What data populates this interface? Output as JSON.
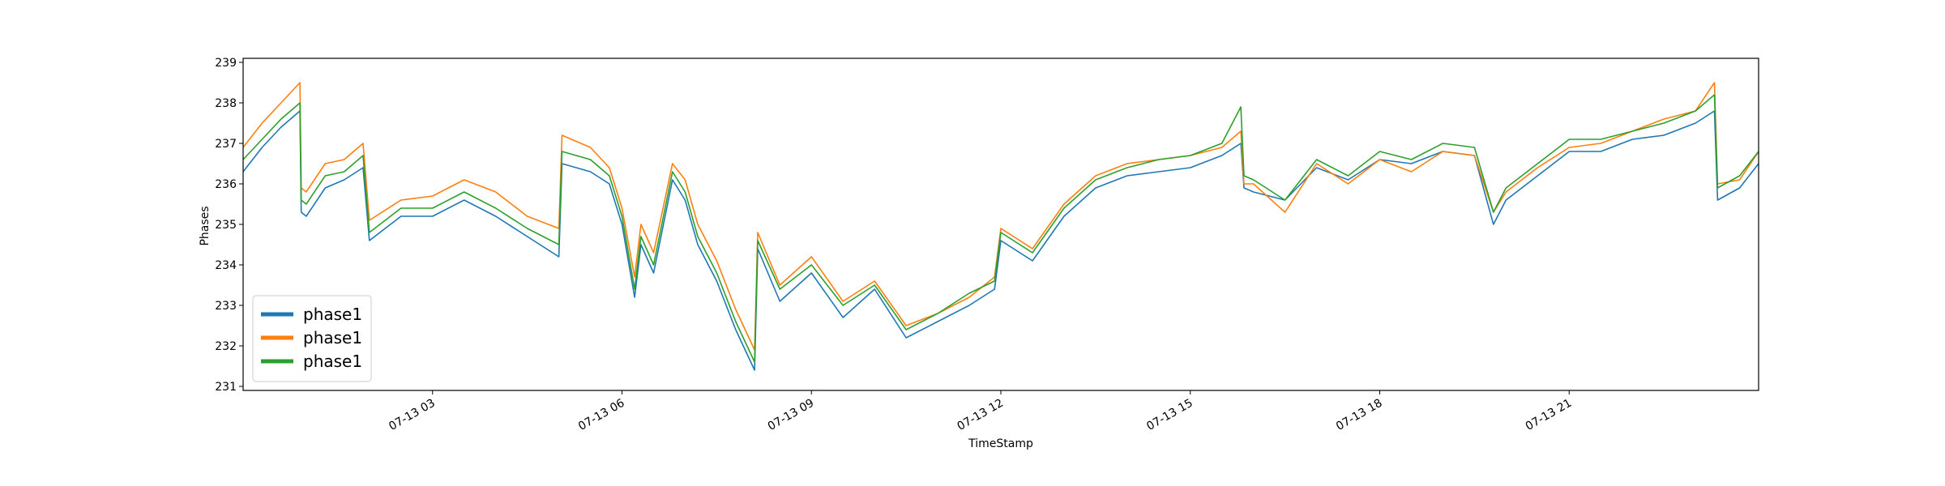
{
  "chart_data": {
    "type": "line",
    "title": "",
    "xlabel": "TimeStamp",
    "ylabel": "Phases",
    "xlim_hours": [
      0,
      24
    ],
    "ylim": [
      230.9,
      239.1
    ],
    "y_ticks": [
      231,
      232,
      233,
      234,
      235,
      236,
      237,
      238,
      239
    ],
    "x_ticks": [
      {
        "hour": 3,
        "label": "07-13 03"
      },
      {
        "hour": 6,
        "label": "07-13 06"
      },
      {
        "hour": 9,
        "label": "07-13 09"
      },
      {
        "hour": 12,
        "label": "07-13 12"
      },
      {
        "hour": 15,
        "label": "07-13 15"
      },
      {
        "hour": 18,
        "label": "07-13 18"
      },
      {
        "hour": 21,
        "label": "07-13 21"
      }
    ],
    "grid": false,
    "legend_position": "lower-left",
    "series": [
      {
        "name": "phase1",
        "color": "#1f77b4",
        "x": [
          0,
          0.3,
          0.6,
          0.9,
          0.92,
          1.0,
          1.3,
          1.6,
          1.9,
          2.0,
          2.5,
          3.0,
          3.5,
          4.0,
          4.5,
          5.0,
          5.05,
          5.5,
          5.8,
          6.0,
          6.2,
          6.3,
          6.5,
          6.8,
          7.0,
          7.2,
          7.5,
          7.8,
          8.1,
          8.15,
          8.5,
          9.0,
          9.5,
          10.0,
          10.5,
          11.0,
          11.5,
          11.9,
          12.0,
          12.5,
          13.0,
          13.5,
          14.0,
          14.5,
          15.0,
          15.5,
          15.8,
          15.85,
          16.0,
          16.5,
          17.0,
          17.5,
          18.0,
          18.5,
          19.0,
          19.5,
          19.8,
          20.0,
          20.5,
          21.0,
          21.5,
          22.0,
          22.5,
          23.0,
          23.3,
          23.35,
          23.7,
          24.0
        ],
        "values": [
          236.3,
          236.9,
          237.4,
          237.8,
          235.3,
          235.2,
          235.9,
          236.1,
          236.4,
          234.6,
          235.2,
          235.2,
          235.6,
          235.2,
          234.7,
          234.2,
          236.5,
          236.3,
          236.0,
          235.0,
          233.2,
          234.5,
          233.8,
          236.1,
          235.6,
          234.5,
          233.6,
          232.4,
          231.4,
          234.4,
          233.1,
          233.8,
          232.7,
          233.4,
          232.2,
          232.6,
          233.0,
          233.4,
          234.6,
          234.1,
          235.2,
          235.9,
          236.2,
          236.3,
          236.4,
          236.7,
          237.0,
          235.9,
          235.8,
          235.6,
          236.4,
          236.1,
          236.6,
          236.5,
          236.8,
          236.7,
          235.0,
          235.6,
          236.2,
          236.8,
          236.8,
          237.1,
          237.2,
          237.5,
          237.8,
          235.6,
          235.9,
          236.5
        ]
      },
      {
        "name": "phase1",
        "color": "#ff7f0e",
        "x": [
          0,
          0.3,
          0.6,
          0.9,
          0.92,
          1.0,
          1.3,
          1.6,
          1.9,
          2.0,
          2.5,
          3.0,
          3.5,
          4.0,
          4.5,
          5.0,
          5.05,
          5.5,
          5.8,
          6.0,
          6.2,
          6.3,
          6.5,
          6.8,
          7.0,
          7.2,
          7.5,
          7.8,
          8.1,
          8.15,
          8.5,
          9.0,
          9.5,
          10.0,
          10.5,
          11.0,
          11.5,
          11.9,
          12.0,
          12.5,
          13.0,
          13.5,
          14.0,
          14.5,
          15.0,
          15.5,
          15.8,
          15.85,
          16.0,
          16.5,
          17.0,
          17.5,
          18.0,
          18.5,
          19.0,
          19.5,
          19.8,
          20.0,
          20.5,
          21.0,
          21.5,
          22.0,
          22.5,
          23.0,
          23.3,
          23.35,
          23.7,
          24.0
        ],
        "values": [
          236.9,
          237.5,
          238.0,
          238.5,
          235.9,
          235.8,
          236.5,
          236.6,
          237.0,
          235.1,
          235.6,
          235.7,
          236.1,
          235.8,
          235.2,
          234.9,
          237.2,
          236.9,
          236.4,
          235.4,
          233.7,
          235.0,
          234.3,
          236.5,
          236.1,
          235.0,
          234.1,
          232.9,
          231.9,
          234.8,
          233.5,
          234.2,
          233.1,
          233.6,
          232.5,
          232.8,
          233.2,
          233.7,
          234.9,
          234.4,
          235.5,
          236.2,
          236.5,
          236.6,
          236.7,
          236.9,
          237.3,
          236.0,
          236.0,
          235.3,
          236.5,
          236.0,
          236.6,
          236.3,
          236.8,
          236.7,
          235.3,
          235.8,
          236.4,
          236.9,
          237.0,
          237.3,
          237.6,
          237.8,
          238.5,
          236.0,
          236.1,
          236.8
        ]
      },
      {
        "name": "phase1",
        "color": "#2ca02c",
        "x": [
          0,
          0.3,
          0.6,
          0.9,
          0.92,
          1.0,
          1.3,
          1.6,
          1.9,
          2.0,
          2.5,
          3.0,
          3.5,
          4.0,
          4.5,
          5.0,
          5.05,
          5.5,
          5.8,
          6.0,
          6.2,
          6.3,
          6.5,
          6.8,
          7.0,
          7.2,
          7.5,
          7.8,
          8.1,
          8.15,
          8.5,
          9.0,
          9.5,
          10.0,
          10.5,
          11.0,
          11.5,
          11.9,
          12.0,
          12.5,
          13.0,
          13.5,
          14.0,
          14.5,
          15.0,
          15.5,
          15.8,
          15.85,
          16.0,
          16.5,
          17.0,
          17.5,
          18.0,
          18.5,
          19.0,
          19.5,
          19.8,
          20.0,
          20.5,
          21.0,
          21.5,
          22.0,
          22.5,
          23.0,
          23.3,
          23.35,
          23.7,
          24.0
        ],
        "values": [
          236.6,
          237.1,
          237.6,
          238.0,
          235.6,
          235.5,
          236.2,
          236.3,
          236.7,
          234.8,
          235.4,
          235.4,
          235.8,
          235.4,
          234.9,
          234.5,
          236.8,
          236.6,
          236.2,
          235.2,
          233.4,
          234.7,
          234.0,
          236.3,
          235.8,
          234.7,
          233.8,
          232.6,
          231.6,
          234.6,
          233.4,
          234.0,
          233.0,
          233.5,
          232.4,
          232.8,
          233.3,
          233.6,
          234.8,
          234.3,
          235.4,
          236.1,
          236.4,
          236.6,
          236.7,
          237.0,
          237.9,
          236.2,
          236.1,
          235.6,
          236.6,
          236.2,
          236.8,
          236.6,
          237.0,
          236.9,
          235.3,
          235.9,
          236.5,
          237.1,
          237.1,
          237.3,
          237.5,
          237.8,
          238.2,
          235.9,
          236.2,
          236.8
        ]
      }
    ]
  }
}
